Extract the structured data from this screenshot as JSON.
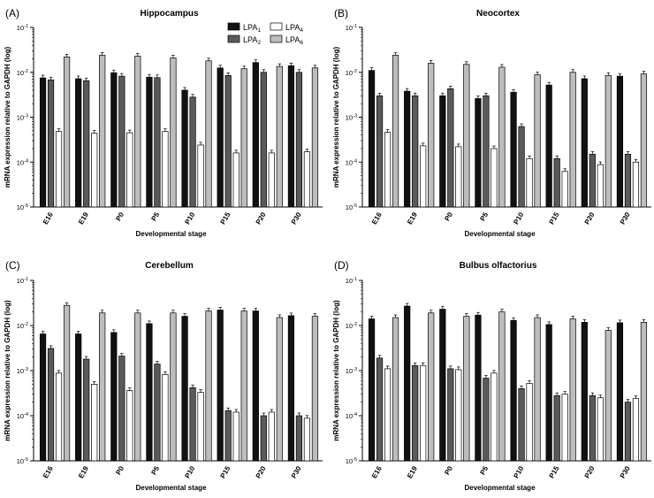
{
  "legend": {
    "series": [
      {
        "label": "LPA",
        "sub": "1",
        "color": "#111111"
      },
      {
        "label": "LPA",
        "sub": "2",
        "color": "#5a5a5a"
      },
      {
        "label": "LPA",
        "sub": "4",
        "color": "#ffffff"
      },
      {
        "label": "LPA",
        "sub": "6",
        "color": "#bdbdbd"
      }
    ]
  },
  "chart_data": [
    {
      "type": "bar",
      "letter": "(A)",
      "title": "Hippocampus",
      "xlabel": "Developmental stage",
      "ylabel": "mRNA expression relative to GAPDH (log)",
      "yscale": "log",
      "ylim": [
        1e-05,
        0.1
      ],
      "yticks": [
        "10-5",
        "10-4",
        "10-3",
        "10-2",
        "10-1"
      ],
      "categories": [
        "E16",
        "E19",
        "P0",
        "P5",
        "P10",
        "P15",
        "P20",
        "P30"
      ],
      "series": [
        {
          "name": "LPA1",
          "values": [
            0.0075,
            0.0072,
            0.0098,
            0.0078,
            0.004,
            0.0125,
            0.0165,
            0.014
          ]
        },
        {
          "name": "LPA2",
          "values": [
            0.0068,
            0.0065,
            0.0082,
            0.0076,
            0.0028,
            0.0085,
            0.01,
            0.01
          ]
        },
        {
          "name": "LPA4",
          "values": [
            0.00048,
            0.00044,
            0.00045,
            0.00048,
            0.00024,
            0.00016,
            0.00016,
            0.00017
          ]
        },
        {
          "name": "LPA6",
          "values": [
            0.022,
            0.024,
            0.023,
            0.021,
            0.018,
            0.012,
            0.0135,
            0.0125
          ]
        }
      ]
    },
    {
      "type": "bar",
      "letter": "(B)",
      "title": "Neocortex",
      "xlabel": "Developmental stage",
      "ylabel": "mRNA expression relative to GAPDH (log)",
      "yscale": "log",
      "ylim": [
        1e-05,
        0.1
      ],
      "yticks": [
        "10-5",
        "10-4",
        "10-3",
        "10-2",
        "10-1"
      ],
      "categories": [
        "E16",
        "E19",
        "P0",
        "P5",
        "P10",
        "P15",
        "P20",
        "P30"
      ],
      "series": [
        {
          "name": "LPA1",
          "values": [
            0.011,
            0.0038,
            0.003,
            0.0026,
            0.0036,
            0.0052,
            0.0072,
            0.0082
          ]
        },
        {
          "name": "LPA2",
          "values": [
            0.003,
            0.003,
            0.0043,
            0.003,
            0.00062,
            0.00012,
            0.00015,
            0.00015
          ]
        },
        {
          "name": "LPA4",
          "values": [
            0.00046,
            0.00023,
            0.00022,
            0.0002,
            0.00012,
            6.2e-05,
            8.8e-05,
            0.0001
          ]
        },
        {
          "name": "LPA6",
          "values": [
            0.024,
            0.016,
            0.015,
            0.013,
            0.0088,
            0.01,
            0.0085,
            0.0092
          ]
        }
      ]
    },
    {
      "type": "bar",
      "letter": "(C)",
      "title": "Cerebellum",
      "xlabel": "Developmental stage",
      "ylabel": "mRNA expression relative to GAPDH (log)",
      "yscale": "log",
      "ylim": [
        1e-05,
        0.1
      ],
      "yticks": [
        "10-5",
        "10-4",
        "10-3",
        "10-2",
        "10-1"
      ],
      "categories": [
        "E16",
        "E19",
        "P0",
        "P5",
        "P10",
        "P15",
        "P20",
        "P30"
      ],
      "series": [
        {
          "name": "LPA1",
          "values": [
            0.0065,
            0.0065,
            0.007,
            0.011,
            0.016,
            0.022,
            0.021,
            0.0165
          ]
        },
        {
          "name": "LPA2",
          "values": [
            0.0031,
            0.0018,
            0.0021,
            0.0014,
            0.00042,
            0.00013,
            0.0001,
            0.0001
          ]
        },
        {
          "name": "LPA4",
          "values": [
            0.00088,
            0.0005,
            0.00036,
            0.00082,
            0.00033,
            0.00012,
            0.00012,
            8.8e-05
          ]
        },
        {
          "name": "LPA6",
          "values": [
            0.028,
            0.019,
            0.019,
            0.019,
            0.021,
            0.021,
            0.015,
            0.016
          ]
        }
      ]
    },
    {
      "type": "bar",
      "letter": "(D)",
      "title": "Bulbus olfactorius",
      "xlabel": "Developmental stage",
      "ylabel": "mRNA expression relative to GAPDH (log)",
      "yscale": "log",
      "ylim": [
        1e-05,
        0.1
      ],
      "yticks": [
        "10-5",
        "10-4",
        "10-3",
        "10-2",
        "10-1"
      ],
      "categories": [
        "E16",
        "E19",
        "P0",
        "P5",
        "P10",
        "P15",
        "P20",
        "P30"
      ],
      "series": [
        {
          "name": "LPA1",
          "values": [
            0.014,
            0.027,
            0.023,
            0.017,
            0.013,
            0.0105,
            0.0118,
            0.0115
          ]
        },
        {
          "name": "LPA2",
          "values": [
            0.0019,
            0.0013,
            0.0011,
            0.00068,
            0.0004,
            0.00028,
            0.00028,
            0.0002
          ]
        },
        {
          "name": "LPA4",
          "values": [
            0.0011,
            0.0013,
            0.00105,
            0.00088,
            0.00052,
            0.0003,
            0.00025,
            0.00024
          ]
        },
        {
          "name": "LPA6",
          "values": [
            0.015,
            0.019,
            0.016,
            0.02,
            0.015,
            0.014,
            0.0078,
            0.0118
          ]
        }
      ]
    }
  ]
}
